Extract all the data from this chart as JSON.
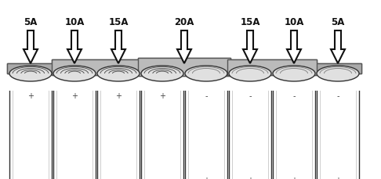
{
  "figsize": [
    4.86,
    2.3
  ],
  "dpi": 100,
  "bg_color": "#ffffff",
  "labels": [
    "5A",
    "10A",
    "15A",
    "20A",
    "15A",
    "10A",
    "5A"
  ],
  "arrow_color_fill": "#ffffff",
  "arrow_color_edge": "#111111",
  "text_color": "#111111",
  "battery_edge_color": "#333333",
  "battery_face_color": "#ffffff",
  "strip_base_color": "#aaaaaa",
  "strip_edge_color": "#555555"
}
